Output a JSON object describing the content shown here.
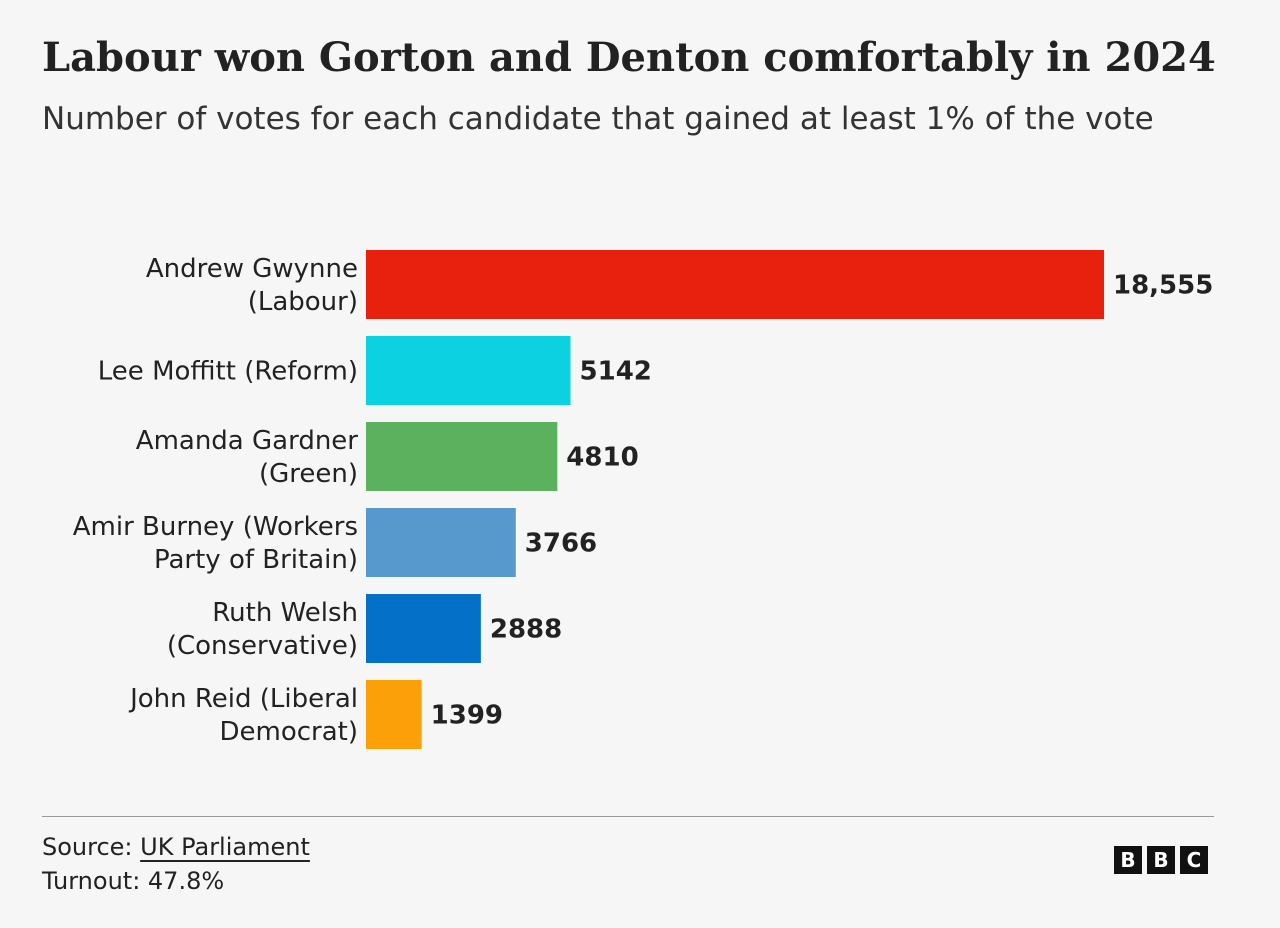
{
  "title": "Labour won Gorton and Denton comfortably in 2024",
  "subtitle": "Number of votes for each candidate that gained at least 1% of the vote",
  "chart_data": {
    "type": "bar",
    "orientation": "horizontal",
    "title": "Labour won Gorton and Denton comfortably in 2024",
    "subtitle": "Number of votes for each candidate that gained at least 1% of the vote",
    "xlabel": "",
    "ylabel": "",
    "xlim": [
      0,
      18555
    ],
    "grid": false,
    "categories": [
      [
        "Andrew Gwynne",
        "(Labour)"
      ],
      [
        "Lee Moffitt (Reform)"
      ],
      [
        "Amanda Gardner",
        "(Green)"
      ],
      [
        "Amir Burney (Workers",
        "Party of Britain)"
      ],
      [
        "Ruth Welsh",
        "(Conservative)"
      ],
      [
        "John Reid (Liberal",
        "Democrat)"
      ]
    ],
    "values": [
      18555,
      5142,
      4810,
      3766,
      2888,
      1399
    ],
    "value_labels": [
      "18,555",
      "5142",
      "4810",
      "3766",
      "2888",
      "1399"
    ],
    "colors": [
      "#e8200e",
      "#0bd1e0",
      "#5bb15e",
      "#5899cd",
      "#0570c8",
      "#fca00a"
    ]
  },
  "footer": {
    "source_prefix": "Source: ",
    "source_link": "UK Parliament",
    "turnout": "Turnout: 47.8%"
  },
  "logo": [
    "B",
    "B",
    "C"
  ]
}
